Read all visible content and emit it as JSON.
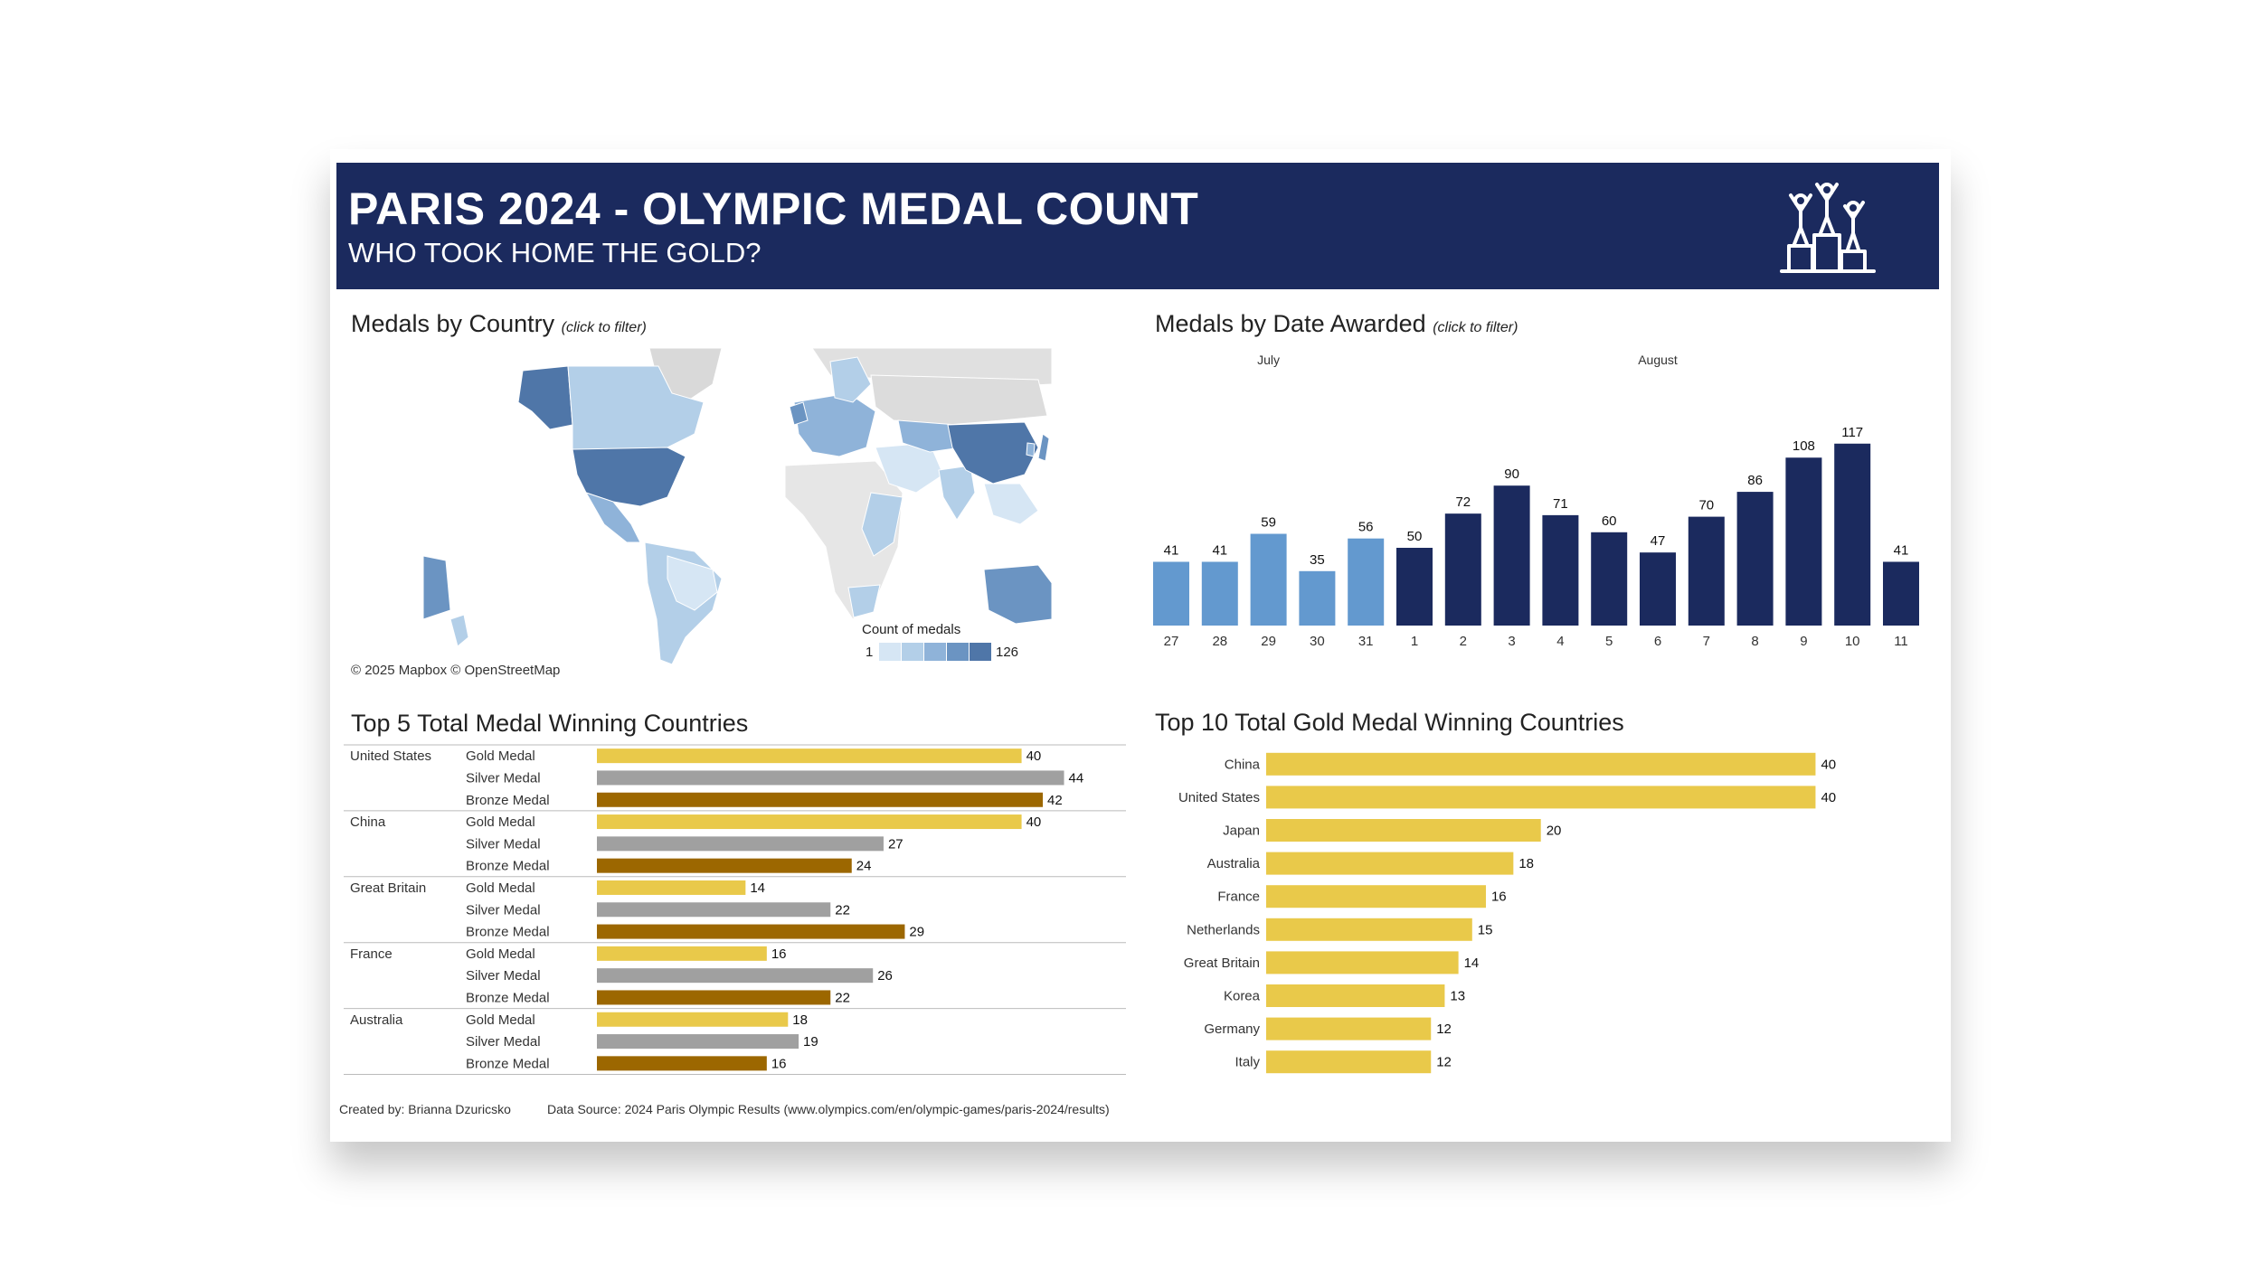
{
  "header": {
    "title": "PARIS 2024 - OLYMPIC MEDAL COUNT",
    "subtitle": "WHO TOOK HOME THE GOLD?",
    "logo_icon": "podium-icon"
  },
  "colors": {
    "header_bg": "#1b2a5e",
    "gold": "#e9c94a",
    "silver": "#a0a0a0",
    "bronze": "#9c6700",
    "july_bar": "#6399cf",
    "august_bar": "#1b2a5e"
  },
  "map_panel": {
    "title": "Medals by Country",
    "hint": "(click to filter)",
    "credit": "© 2025 Mapbox  © OpenStreetMap",
    "legend_title": "Count of medals",
    "legend_min": "1",
    "legend_max": "126",
    "legend_colors": [
      "#d6e6f4",
      "#b3cfe8",
      "#8fb3d9",
      "#6b94c2",
      "#4f76a8"
    ]
  },
  "date_panel": {
    "title": "Medals by Date Awarded",
    "hint": "(click to filter)"
  },
  "top5_panel": {
    "title": "Top 5 Total Medal Winning Countries"
  },
  "top10_panel": {
    "title": "Top 10 Total Gold Medal Winning Countries"
  },
  "footer": {
    "created_by": "Created by: Brianna Dzuricsko",
    "source": "Data Source: 2024 Paris Olympic Results (www.olympics.com/en/olympic-games/paris-2024/results)"
  },
  "chart_data": [
    {
      "id": "medals-by-date",
      "type": "bar",
      "title": "Medals by Date Awarded",
      "groups": [
        {
          "label": "July",
          "categories": [
            "27",
            "28",
            "29",
            "30",
            "31"
          ],
          "values": [
            41,
            41,
            59,
            35,
            56
          ]
        },
        {
          "label": "August",
          "categories": [
            "1",
            "2",
            "3",
            "4",
            "5",
            "6",
            "7",
            "8",
            "9",
            "10",
            "11"
          ],
          "values": [
            50,
            72,
            90,
            71,
            60,
            47,
            70,
            86,
            108,
            117,
            41
          ]
        }
      ],
      "ylim": [
        0,
        125
      ]
    },
    {
      "id": "top5-total",
      "type": "bar",
      "orientation": "horizontal",
      "title": "Top 5 Total Medal Winning Countries",
      "medal_types": [
        "Gold Medal",
        "Silver Medal",
        "Bronze Medal"
      ],
      "countries": [
        {
          "name": "United States",
          "values": [
            40,
            44,
            42
          ]
        },
        {
          "name": "China",
          "values": [
            40,
            27,
            24
          ]
        },
        {
          "name": "Great Britain",
          "values": [
            14,
            22,
            29
          ]
        },
        {
          "name": "France",
          "values": [
            16,
            26,
            22
          ]
        },
        {
          "name": "Australia",
          "values": [
            18,
            19,
            16
          ]
        }
      ],
      "xlim": [
        0,
        46
      ]
    },
    {
      "id": "top10-gold",
      "type": "bar",
      "orientation": "horizontal",
      "title": "Top 10 Total Gold Medal Winning Countries",
      "categories": [
        "China",
        "United States",
        "Japan",
        "Australia",
        "France",
        "Netherlands",
        "Great Britain",
        "Korea",
        "Germany",
        "Italy"
      ],
      "values": [
        40,
        40,
        20,
        18,
        16,
        15,
        14,
        13,
        12,
        12
      ],
      "xlim": [
        0,
        43
      ]
    }
  ]
}
